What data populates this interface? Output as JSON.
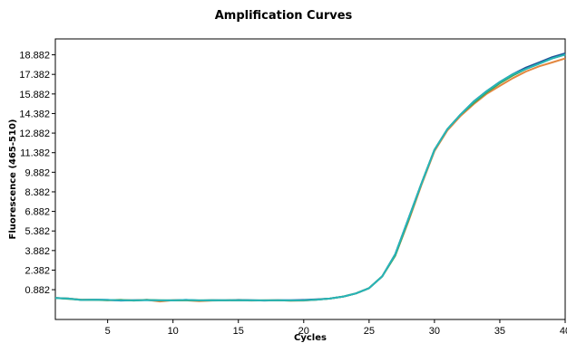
{
  "chart_data": {
    "type": "line",
    "title": "Amplification Curves",
    "xlabel": "Cycles",
    "ylabel": "Fluorescence (465-510)",
    "xlim": [
      1,
      40
    ],
    "ylim": [
      -1.4,
      20.1
    ],
    "grid": false,
    "legend": "none",
    "x_ticks": [
      "5",
      "10",
      "15",
      "20",
      "25",
      "30",
      "35",
      "40"
    ],
    "y_ticks": [
      "0.882",
      "2.382",
      "3.882",
      "5.382",
      "6.882",
      "8.382",
      "9.882",
      "11.382",
      "12.882",
      "14.382",
      "15.882",
      "17.382",
      "18.882"
    ],
    "x": [
      1,
      2,
      3,
      4,
      5,
      6,
      7,
      8,
      9,
      10,
      11,
      12,
      13,
      14,
      15,
      16,
      17,
      18,
      19,
      20,
      21,
      22,
      23,
      24,
      25,
      26,
      27,
      28,
      29,
      30,
      31,
      32,
      33,
      34,
      35,
      36,
      37,
      38,
      39,
      40
    ],
    "series": [
      {
        "color": "#1f4e9a",
        "values": [
          0.25,
          0.2,
          0.1,
          0.12,
          0.1,
          0.05,
          0.08,
          0.1,
          0.05,
          0.06,
          0.1,
          0.05,
          0.08,
          0.06,
          0.1,
          0.08,
          0.05,
          0.08,
          0.07,
          0.1,
          0.15,
          0.2,
          0.35,
          0.6,
          1.0,
          1.9,
          3.6,
          6.3,
          9.0,
          11.6,
          13.2,
          14.3,
          15.3,
          16.1,
          16.8,
          17.4,
          17.9,
          18.3,
          18.7,
          19.0
        ]
      },
      {
        "color": "#e3873f",
        "values": [
          0.25,
          0.2,
          0.12,
          0.12,
          0.08,
          0.1,
          0.06,
          0.1,
          -0.02,
          0.08,
          0.06,
          0.0,
          0.05,
          0.06,
          0.08,
          0.05,
          0.06,
          0.08,
          0.04,
          0.05,
          0.12,
          0.2,
          0.35,
          0.6,
          1.0,
          1.9,
          3.5,
          6.1,
          8.9,
          11.5,
          13.1,
          14.2,
          15.1,
          15.9,
          16.5,
          17.1,
          17.6,
          18.0,
          18.3,
          18.6
        ]
      },
      {
        "color": "#3aa55a",
        "values": [
          0.25,
          0.18,
          0.1,
          0.1,
          0.08,
          0.1,
          0.05,
          0.1,
          0.08,
          0.06,
          0.08,
          0.06,
          0.08,
          0.06,
          0.08,
          0.06,
          0.06,
          0.06,
          0.05,
          0.06,
          0.12,
          0.2,
          0.35,
          0.6,
          1.0,
          1.9,
          3.5,
          6.2,
          9.0,
          11.6,
          13.2,
          14.3,
          15.2,
          16.0,
          16.7,
          17.3,
          17.8,
          18.2,
          18.6,
          18.9
        ]
      },
      {
        "color": "#27b4b8",
        "values": [
          0.25,
          0.2,
          0.1,
          0.12,
          0.1,
          0.06,
          0.08,
          0.08,
          0.06,
          0.06,
          0.1,
          0.06,
          0.06,
          0.08,
          0.08,
          0.06,
          0.06,
          0.07,
          0.06,
          0.08,
          0.12,
          0.2,
          0.35,
          0.6,
          1.0,
          1.9,
          3.6,
          6.3,
          9.0,
          11.6,
          13.2,
          14.3,
          15.3,
          16.1,
          16.8,
          17.4,
          17.8,
          18.2,
          18.6,
          18.9
        ]
      }
    ]
  }
}
